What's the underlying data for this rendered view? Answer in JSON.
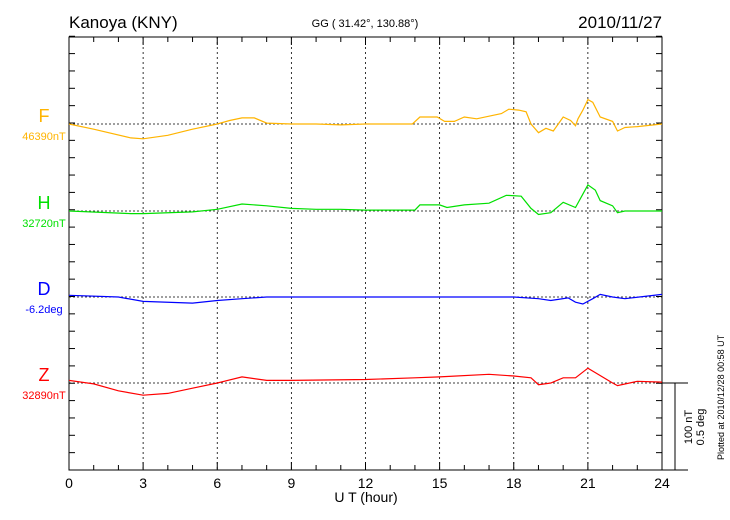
{
  "chart_data": {
    "type": "line",
    "title": "Kanoya (KNY)",
    "subtitle": "GG ( 31.42°, 130.88°)",
    "date": "2010/11/27",
    "xlabel": "U T (hour)",
    "xlim": [
      0,
      24
    ],
    "xticks": [
      "0",
      "3",
      "6",
      "9",
      "12",
      "15",
      "18",
      "21",
      "24"
    ],
    "scale_label_1": "100 nT",
    "scale_label_2": "0.5 deg",
    "plotted_note": "Plotted at 2010/12/28 00:58 UT",
    "grid": true,
    "series": [
      {
        "name": "F",
        "baseline_label": "46390nT",
        "color": "#ffb400",
        "x": [
          0,
          1,
          2.5,
          3,
          4,
          5,
          6,
          6.5,
          7,
          7.5,
          8,
          9,
          10,
          11,
          12,
          13,
          13.9,
          14.2,
          14.9,
          15.2,
          15.6,
          16,
          16.5,
          17,
          17.5,
          17.8,
          18.2,
          18.5,
          18.7,
          19,
          19.3,
          19.6,
          20,
          20.3,
          20.5,
          20.6,
          20.8,
          21,
          21.2,
          21.5,
          22,
          22.2,
          22.5,
          23,
          24
        ],
        "y": [
          0,
          -6,
          -16,
          -17,
          -13,
          -6,
          0,
          4,
          7,
          7,
          1,
          0,
          0,
          -1,
          0,
          0,
          0,
          8,
          8,
          3,
          3,
          8,
          6,
          9,
          12,
          17,
          16,
          14,
          0,
          -10,
          -5,
          -8,
          8,
          4,
          -2,
          6,
          16,
          28,
          25,
          8,
          3,
          -8,
          -4,
          -3,
          0
        ]
      },
      {
        "name": "H",
        "baseline_label": "32720nT",
        "color": "#00e000",
        "x": [
          0,
          2.5,
          3,
          5,
          6,
          7,
          8,
          9,
          10,
          11,
          12,
          13,
          14,
          14.2,
          15,
          15.3,
          16,
          17,
          17.7,
          18.3,
          18.7,
          19,
          19.5,
          20,
          20.5,
          21,
          21.3,
          21.5,
          22,
          22.2,
          22.5,
          24
        ],
        "y": [
          0,
          -3,
          -3,
          -1,
          2,
          8,
          6,
          3,
          2,
          2,
          1,
          1,
          1,
          7,
          7,
          4,
          7,
          9,
          18,
          17,
          3,
          -4,
          -2,
          10,
          4,
          30,
          24,
          12,
          6,
          -2,
          0,
          0
        ]
      },
      {
        "name": "D",
        "baseline_label": "-6.2deg",
        "color": "#0000ff",
        "x": [
          0,
          2,
          3,
          5,
          6,
          7,
          8,
          12,
          18,
          19,
          19.5,
          20.2,
          20.5,
          20.8,
          21.2,
          21.5,
          22,
          22.5,
          24
        ],
        "y": [
          2,
          0,
          -5,
          -7,
          -4,
          -2,
          0,
          0,
          0,
          -2,
          -4,
          -1,
          -6,
          -8,
          -2,
          3,
          0,
          -2,
          3
        ]
      },
      {
        "name": "Z",
        "baseline_label": "32890nT",
        "color": "#ff0000",
        "x": [
          0,
          1,
          2,
          3,
          4,
          5,
          6,
          7,
          8,
          9,
          12,
          14,
          15,
          17,
          18,
          18.7,
          19,
          19.5,
          20,
          20.5,
          21,
          21.3,
          22,
          22.2,
          23,
          24
        ],
        "y": [
          3,
          -1,
          -9,
          -14,
          -12,
          -6,
          0,
          7,
          3,
          3,
          4,
          6,
          7,
          10,
          8,
          6,
          -2,
          0,
          6,
          6,
          17,
          12,
          0,
          -3,
          2,
          1
        ]
      }
    ]
  }
}
